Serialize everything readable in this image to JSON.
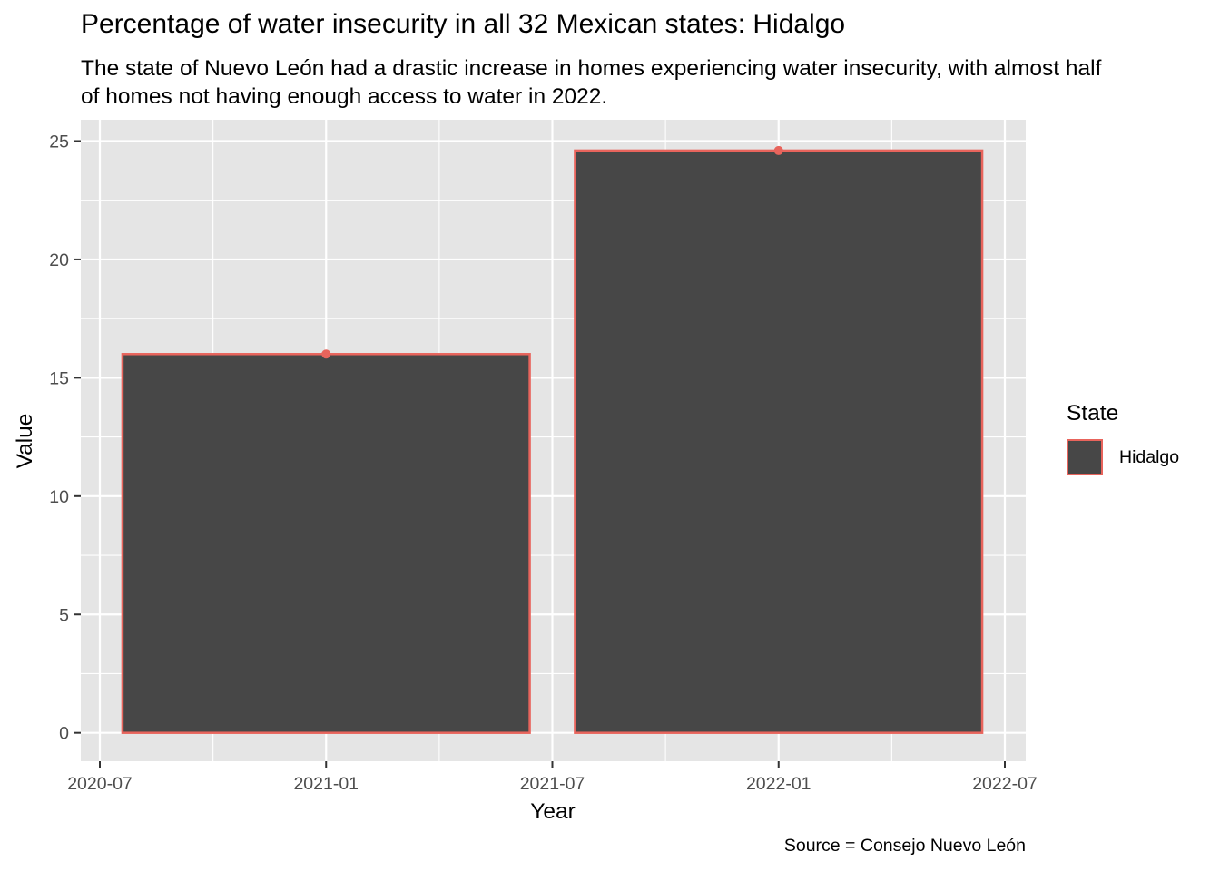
{
  "chart_data": {
    "type": "bar",
    "title": "Percentage of water insecurity in all 32 Mexican states: Hidalgo",
    "subtitle": "The state of Nuevo León had a drastic increase in homes experiencing water insecurity, with almost half of homes not having enough access to water in 2022.",
    "caption": "Source = Consejo Nuevo León",
    "xlabel": "Year",
    "ylabel": "Value",
    "x_ticks": [
      "2020-07",
      "2021-01",
      "2021-07",
      "2022-01",
      "2022-07"
    ],
    "y_ticks": [
      0,
      5,
      10,
      15,
      20,
      25
    ],
    "ylim": [
      -1.2,
      25.9
    ],
    "categories": [
      "2021-01",
      "2022-01"
    ],
    "series": [
      {
        "name": "Hidalgo",
        "values": [
          16.0,
          24.6
        ]
      }
    ],
    "legend": {
      "title": "State",
      "position": "right",
      "items": [
        "Hidalgo"
      ]
    },
    "colors": {
      "panel_bg": "#e5e5e5",
      "grid": "#ffffff",
      "bar_fill": "#474747",
      "bar_outline": "#e8645c",
      "point": "#e8645c"
    }
  }
}
